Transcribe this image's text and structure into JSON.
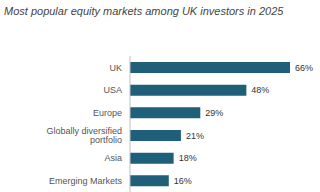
{
  "chart_data": {
    "type": "bar",
    "title": "Most popular equity markets among UK investors in 2025",
    "orientation": "horizontal",
    "categories": [
      "UK",
      "USA",
      "Europe",
      "Globally diversified portfolio",
      "Asia",
      "Emerging Markets"
    ],
    "values": [
      66,
      48,
      29,
      21,
      18,
      16
    ],
    "value_labels": [
      "66%",
      "48%",
      "29%",
      "21%",
      "18%",
      "16%"
    ],
    "color": "#1f5f7a",
    "data_labels": true,
    "tick_labels": "y",
    "grid": false
  }
}
